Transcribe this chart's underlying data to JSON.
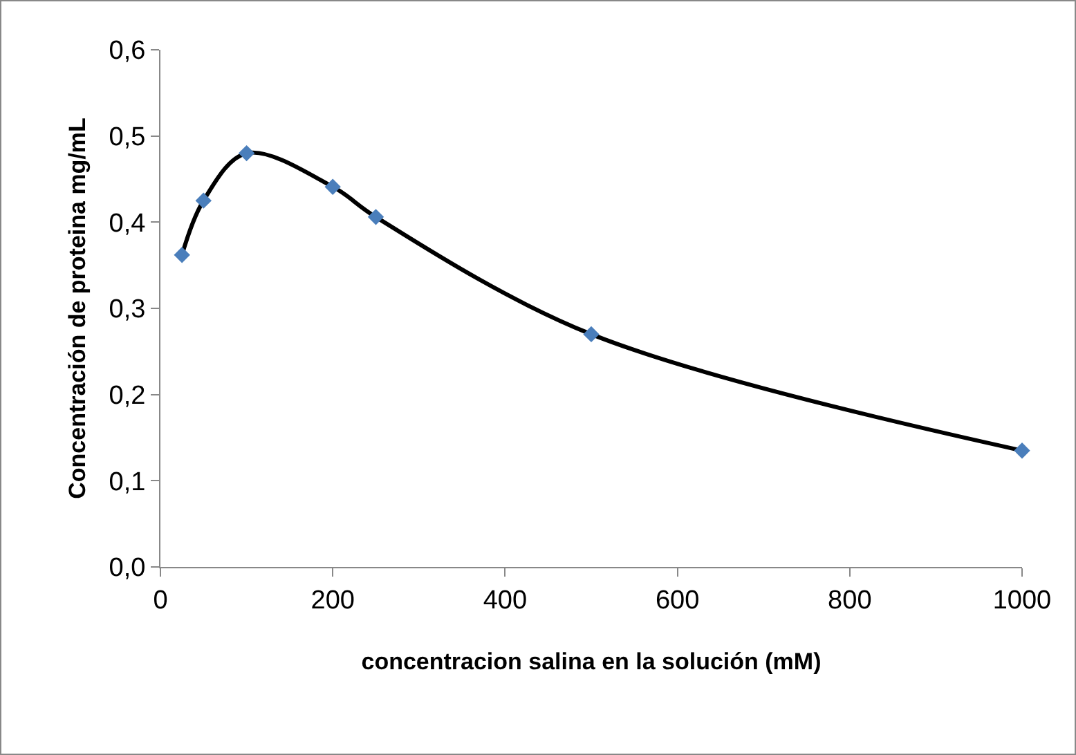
{
  "chart_data": {
    "type": "scatter",
    "xlabel": "concentracion salina en la solución (mM)",
    "ylabel": "Concentración de proteina mg/mL",
    "x": [
      25,
      50,
      100,
      200,
      250,
      500,
      1000
    ],
    "series": [
      {
        "type": "line",
        "color": "#000000",
        "marker": "none",
        "line_style": "solid",
        "values": [
          0.362,
          0.425,
          0.48,
          0.441,
          0.406,
          0.27,
          0.135
        ]
      },
      {
        "color": "#4a7ebb",
        "marker": "diamond",
        "values": [
          0.362,
          0.425,
          0.48,
          0.441,
          0.406,
          0.27,
          0.135
        ]
      }
    ],
    "xlim": [
      0,
      1000
    ],
    "xticks": [
      0,
      200,
      400,
      600,
      800,
      1000
    ],
    "ylim": [
      0,
      0.6
    ],
    "yticks": [
      {
        "value": 0,
        "label": "0,0"
      },
      {
        "value": 0.1,
        "label": "0,1"
      },
      {
        "value": 0.2,
        "label": "0,2"
      },
      {
        "value": 0.3,
        "label": "0,3"
      },
      {
        "value": 0.4,
        "label": "0,4"
      },
      {
        "value": 0.5,
        "label": "0,5"
      },
      {
        "value": 0.6,
        "label": "0,6"
      }
    ],
    "grid": false,
    "legend": false
  }
}
